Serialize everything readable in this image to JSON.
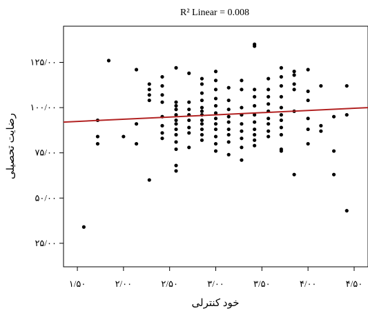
{
  "chart_data": {
    "type": "scatter",
    "title": "R² Linear = 0.008",
    "xlabel": "خود کنترلی",
    "ylabel": "رضایت تحصیلی",
    "xlim": [
      1.35,
      4.65
    ],
    "ylim": [
      12,
      145
    ],
    "x_ticks": [
      1.5,
      2.0,
      2.5,
      3.0,
      3.5,
      4.0,
      4.5
    ],
    "x_tick_labels": [
      "۱/۵۰",
      "۲/۰۰",
      "۲/۵۰",
      "۳/۰۰",
      "۳/۵۰",
      "۴/۰۰",
      "۴/۵۰"
    ],
    "y_ticks": [
      25,
      50,
      75,
      100,
      125
    ],
    "y_tick_labels": [
      "۲۵/۰۰",
      "۵۰/۰۰",
      "۷۵/۰۰",
      "۱۰۰/۰۰",
      "۱۲۵/۰۰"
    ],
    "fit_line": {
      "x": [
        1.35,
        4.65
      ],
      "y": [
        92,
        100
      ],
      "color": "#b22222"
    },
    "grid": false,
    "series": [
      {
        "color": "#000000",
        "points": [
          [
            1.57,
            34
          ],
          [
            1.72,
            93
          ],
          [
            1.72,
            84
          ],
          [
            1.72,
            80
          ],
          [
            1.84,
            126
          ],
          [
            2.0,
            84
          ],
          [
            2.14,
            121
          ],
          [
            2.14,
            91
          ],
          [
            2.14,
            80
          ],
          [
            2.28,
            113
          ],
          [
            2.28,
            110
          ],
          [
            2.28,
            107
          ],
          [
            2.28,
            104
          ],
          [
            2.28,
            60
          ],
          [
            2.42,
            117
          ],
          [
            2.42,
            112
          ],
          [
            2.42,
            107
          ],
          [
            2.42,
            103
          ],
          [
            2.42,
            95
          ],
          [
            2.42,
            90
          ],
          [
            2.42,
            86
          ],
          [
            2.42,
            83
          ],
          [
            2.57,
            122
          ],
          [
            2.57,
            103
          ],
          [
            2.57,
            101
          ],
          [
            2.57,
            99
          ],
          [
            2.57,
            96
          ],
          [
            2.57,
            93
          ],
          [
            2.57,
            91
          ],
          [
            2.57,
            88
          ],
          [
            2.57,
            85
          ],
          [
            2.57,
            81
          ],
          [
            2.57,
            77
          ],
          [
            2.57,
            68
          ],
          [
            2.57,
            65
          ],
          [
            2.71,
            119
          ],
          [
            2.71,
            103
          ],
          [
            2.71,
            99
          ],
          [
            2.71,
            96
          ],
          [
            2.71,
            93
          ],
          [
            2.71,
            89
          ],
          [
            2.71,
            86
          ],
          [
            2.71,
            78
          ],
          [
            2.85,
            116
          ],
          [
            2.85,
            113
          ],
          [
            2.85,
            108
          ],
          [
            2.85,
            104
          ],
          [
            2.85,
            100
          ],
          [
            2.85,
            98
          ],
          [
            2.85,
            96
          ],
          [
            2.85,
            93
          ],
          [
            2.85,
            91
          ],
          [
            2.85,
            88
          ],
          [
            2.85,
            85
          ],
          [
            2.85,
            82
          ],
          [
            3.0,
            120
          ],
          [
            3.0,
            115
          ],
          [
            3.0,
            110
          ],
          [
            3.0,
            105
          ],
          [
            3.0,
            101
          ],
          [
            3.0,
            97
          ],
          [
            3.0,
            94
          ],
          [
            3.0,
            91
          ],
          [
            3.0,
            88
          ],
          [
            3.0,
            84
          ],
          [
            3.0,
            80
          ],
          [
            3.0,
            76
          ],
          [
            3.14,
            111
          ],
          [
            3.14,
            104
          ],
          [
            3.14,
            99
          ],
          [
            3.14,
            95
          ],
          [
            3.14,
            92
          ],
          [
            3.14,
            88
          ],
          [
            3.14,
            85
          ],
          [
            3.14,
            81
          ],
          [
            3.14,
            74
          ],
          [
            3.28,
            115
          ],
          [
            3.28,
            110
          ],
          [
            3.28,
            100
          ],
          [
            3.28,
            96
          ],
          [
            3.28,
            91
          ],
          [
            3.28,
            87
          ],
          [
            3.28,
            83
          ],
          [
            3.28,
            78
          ],
          [
            3.28,
            71
          ],
          [
            3.42,
            135
          ],
          [
            3.42,
            134
          ],
          [
            3.42,
            110
          ],
          [
            3.42,
            106
          ],
          [
            3.42,
            101
          ],
          [
            3.42,
            96
          ],
          [
            3.42,
            92
          ],
          [
            3.42,
            88
          ],
          [
            3.42,
            85
          ],
          [
            3.42,
            82
          ],
          [
            3.42,
            79
          ],
          [
            3.57,
            116
          ],
          [
            3.57,
            110
          ],
          [
            3.57,
            106
          ],
          [
            3.57,
            102
          ],
          [
            3.57,
            98
          ],
          [
            3.57,
            94
          ],
          [
            3.57,
            91
          ],
          [
            3.57,
            87
          ],
          [
            3.57,
            84
          ],
          [
            3.71,
            122
          ],
          [
            3.71,
            117
          ],
          [
            3.71,
            112
          ],
          [
            3.71,
            106
          ],
          [
            3.71,
            100
          ],
          [
            3.71,
            96
          ],
          [
            3.71,
            93
          ],
          [
            3.71,
            89
          ],
          [
            3.71,
            85
          ],
          [
            3.71,
            77
          ],
          [
            3.71,
            76
          ],
          [
            3.85,
            120
          ],
          [
            3.85,
            118
          ],
          [
            3.85,
            113
          ],
          [
            3.85,
            110
          ],
          [
            3.85,
            98
          ],
          [
            3.85,
            63
          ],
          [
            4.0,
            121
          ],
          [
            4.0,
            109
          ],
          [
            4.0,
            104
          ],
          [
            4.0,
            94
          ],
          [
            4.0,
            88
          ],
          [
            4.0,
            80
          ],
          [
            4.14,
            112
          ],
          [
            4.14,
            90
          ],
          [
            4.14,
            87
          ],
          [
            4.28,
            95
          ],
          [
            4.28,
            76
          ],
          [
            4.28,
            63
          ],
          [
            4.42,
            112
          ],
          [
            4.42,
            96
          ],
          [
            4.42,
            43
          ]
        ]
      }
    ]
  }
}
